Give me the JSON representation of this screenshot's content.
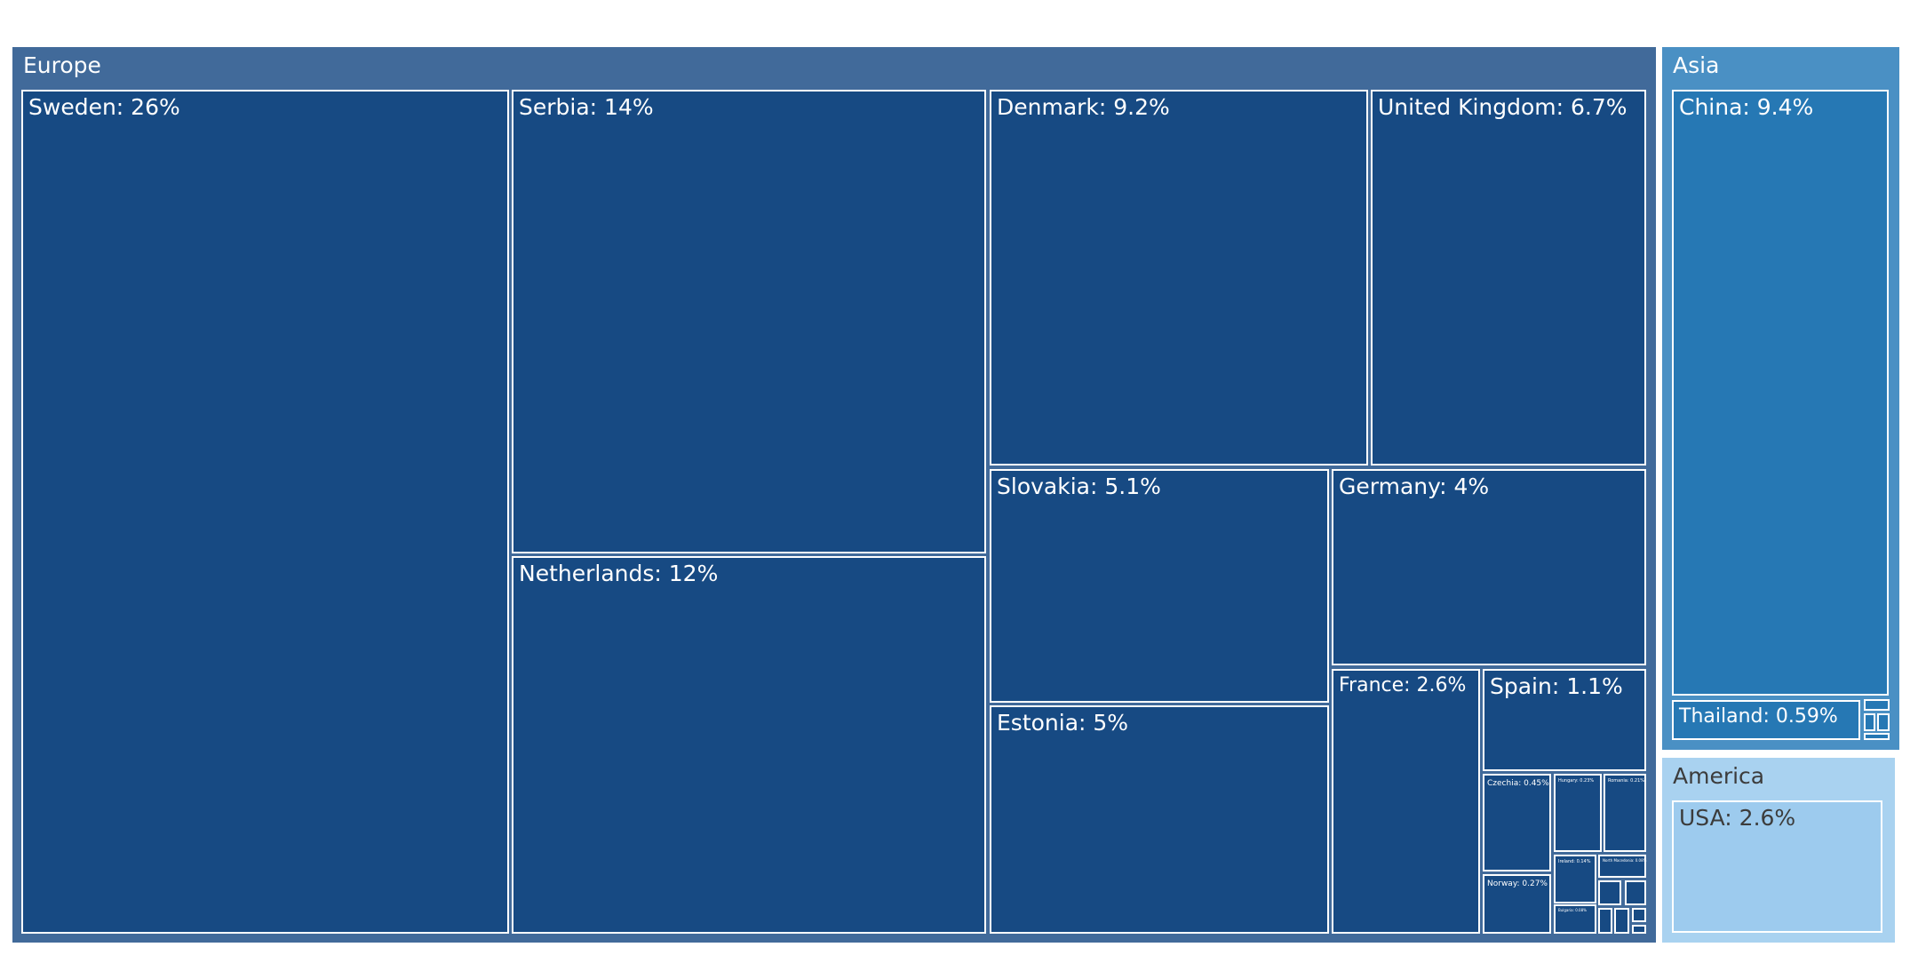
{
  "chart_data": {
    "type": "treemap",
    "title": "",
    "colors": {
      "europe_bg": "#416a9a",
      "europe_tile": "#174a83",
      "asia_bg": "#4a90c4",
      "asia_tile": "#2678b4",
      "america_bg": "#a9d2f0",
      "america_tile": "#9dcbee",
      "border": "#ffffff",
      "text_dark": "#3c3c3c",
      "text_light": "#ffffff"
    },
    "groups": [
      {
        "name": "Europe",
        "children": [
          {
            "label": "Sweden: 26%",
            "name": "Sweden",
            "value": 26
          },
          {
            "label": "Serbia: 14%",
            "name": "Serbia",
            "value": 14
          },
          {
            "label": "Netherlands: 12%",
            "name": "Netherlands",
            "value": 12
          },
          {
            "label": "Denmark: 9.2%",
            "name": "Denmark",
            "value": 9.2
          },
          {
            "label": "United Kingdom: 6.7%",
            "name": "United Kingdom",
            "value": 6.7
          },
          {
            "label": "Slovakia: 5.1%",
            "name": "Slovakia",
            "value": 5.1
          },
          {
            "label": "Estonia: 5%",
            "name": "Estonia",
            "value": 5
          },
          {
            "label": "Germany: 4%",
            "name": "Germany",
            "value": 4
          },
          {
            "label": "France: 2.6%",
            "name": "France",
            "value": 2.6
          },
          {
            "label": "Spain: 1.1%",
            "name": "Spain",
            "value": 1.1
          },
          {
            "label": "Czechia: 0.45%",
            "name": "Czechia",
            "value": 0.45
          },
          {
            "label": "Norway: 0.27%",
            "name": "Norway",
            "value": 0.27
          },
          {
            "label": "Hungary: 0.23%",
            "name": "Hungary",
            "value": 0.23
          },
          {
            "label": "Romania: 0.21%",
            "name": "Romania",
            "value": 0.21
          },
          {
            "label": "Ireland: 0.14%",
            "name": "Ireland",
            "value": 0.14
          },
          {
            "label": "North Macedonia: 0.08%",
            "name": "North Macedonia",
            "value": 0.08
          },
          {
            "label": "Bulgaria: 0.08%",
            "name": "Bulgaria",
            "value": 0.08
          },
          {
            "label": "",
            "name": "",
            "value": 0.05
          },
          {
            "label": "",
            "name": "",
            "value": 0.04
          },
          {
            "label": "",
            "name": "",
            "value": 0.03
          },
          {
            "label": "",
            "name": "",
            "value": 0.03
          },
          {
            "label": "",
            "name": "",
            "value": 0.02
          },
          {
            "label": "",
            "name": "",
            "value": 0.01
          }
        ]
      },
      {
        "name": "Asia",
        "children": [
          {
            "label": "China: 9.4%",
            "name": "China",
            "value": 9.4
          },
          {
            "label": "Thailand: 0.59%",
            "name": "Thailand",
            "value": 0.59
          },
          {
            "label": "",
            "name": "",
            "value": 0.07
          },
          {
            "label": "",
            "name": "",
            "value": 0.06
          },
          {
            "label": "",
            "name": "",
            "value": 0.05
          },
          {
            "label": "",
            "name": "",
            "value": 0.03
          }
        ]
      },
      {
        "name": "America",
        "children": [
          {
            "label": "USA: 2.6%",
            "name": "USA",
            "value": 2.6
          }
        ]
      }
    ]
  }
}
